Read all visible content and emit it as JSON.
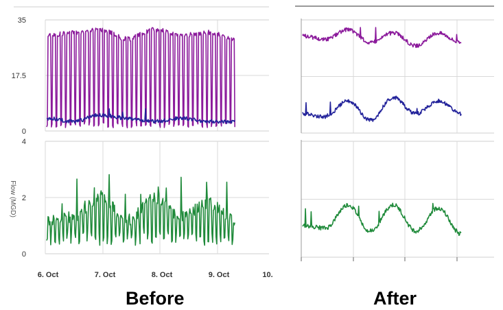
{
  "captions": {
    "before": "Before",
    "after": "After"
  },
  "chart_data": [
    {
      "panel": "before-top",
      "type": "line",
      "ylim": [
        0,
        35
      ],
      "yticks": [
        "35",
        "17.5",
        "0"
      ],
      "grid": true,
      "series": [
        {
          "color": "#8b1a9b",
          "pattern": "oscillating",
          "x": [
            0,
            0.5,
            1,
            1.5,
            2,
            2.5,
            3,
            3.5
          ],
          "values": [
            30,
            31,
            32,
            29,
            32,
            30,
            31,
            29
          ]
        },
        {
          "color": "#22229a",
          "pattern": "smooth",
          "x": [
            0,
            0.5,
            1,
            1.5,
            2,
            2.5,
            3,
            3.5
          ],
          "values": [
            4,
            3,
            5,
            4,
            3,
            4,
            3,
            3
          ]
        }
      ]
    },
    {
      "panel": "before-bottom",
      "type": "line",
      "ylim": [
        0,
        4
      ],
      "yticks": [
        "4",
        "2",
        "0"
      ],
      "ylabel": "Flow (MGD)",
      "xticks": [
        "6. Oct",
        "7. Oct",
        "8. Oct",
        "9. Oct",
        "10."
      ],
      "grid": true,
      "series": [
        {
          "color": "#1f8a3a",
          "pattern": "oscillating",
          "x": [
            0,
            0.5,
            1,
            1.5,
            2,
            2.5,
            3,
            3.5
          ],
          "values": [
            1.2,
            1.3,
            2.0,
            1.2,
            2.0,
            1.3,
            1.8,
            1.2
          ]
        }
      ]
    },
    {
      "panel": "after-top",
      "type": "line",
      "grid": true,
      "series": [
        {
          "color": "#8b1a9b",
          "x": [
            0,
            0.5,
            1,
            1.5,
            2,
            2.5,
            3,
            3.5
          ],
          "values": [
            30,
            29,
            32,
            28,
            31,
            27,
            31,
            28
          ]
        },
        {
          "color": "#22229a",
          "x": [
            0,
            0.5,
            1,
            1.5,
            2,
            2.5,
            3,
            3.5
          ],
          "values": [
            6,
            5,
            10,
            4,
            11,
            6,
            10,
            6
          ]
        }
      ]
    },
    {
      "panel": "after-bottom",
      "type": "line",
      "grid": true,
      "series": [
        {
          "color": "#1f8a3a",
          "x": [
            0,
            0.5,
            1,
            1.5,
            2,
            2.5,
            3,
            3.5
          ],
          "values": [
            1.1,
            1.0,
            1.8,
            0.9,
            1.8,
            0.9,
            1.7,
            0.8
          ]
        }
      ]
    }
  ]
}
